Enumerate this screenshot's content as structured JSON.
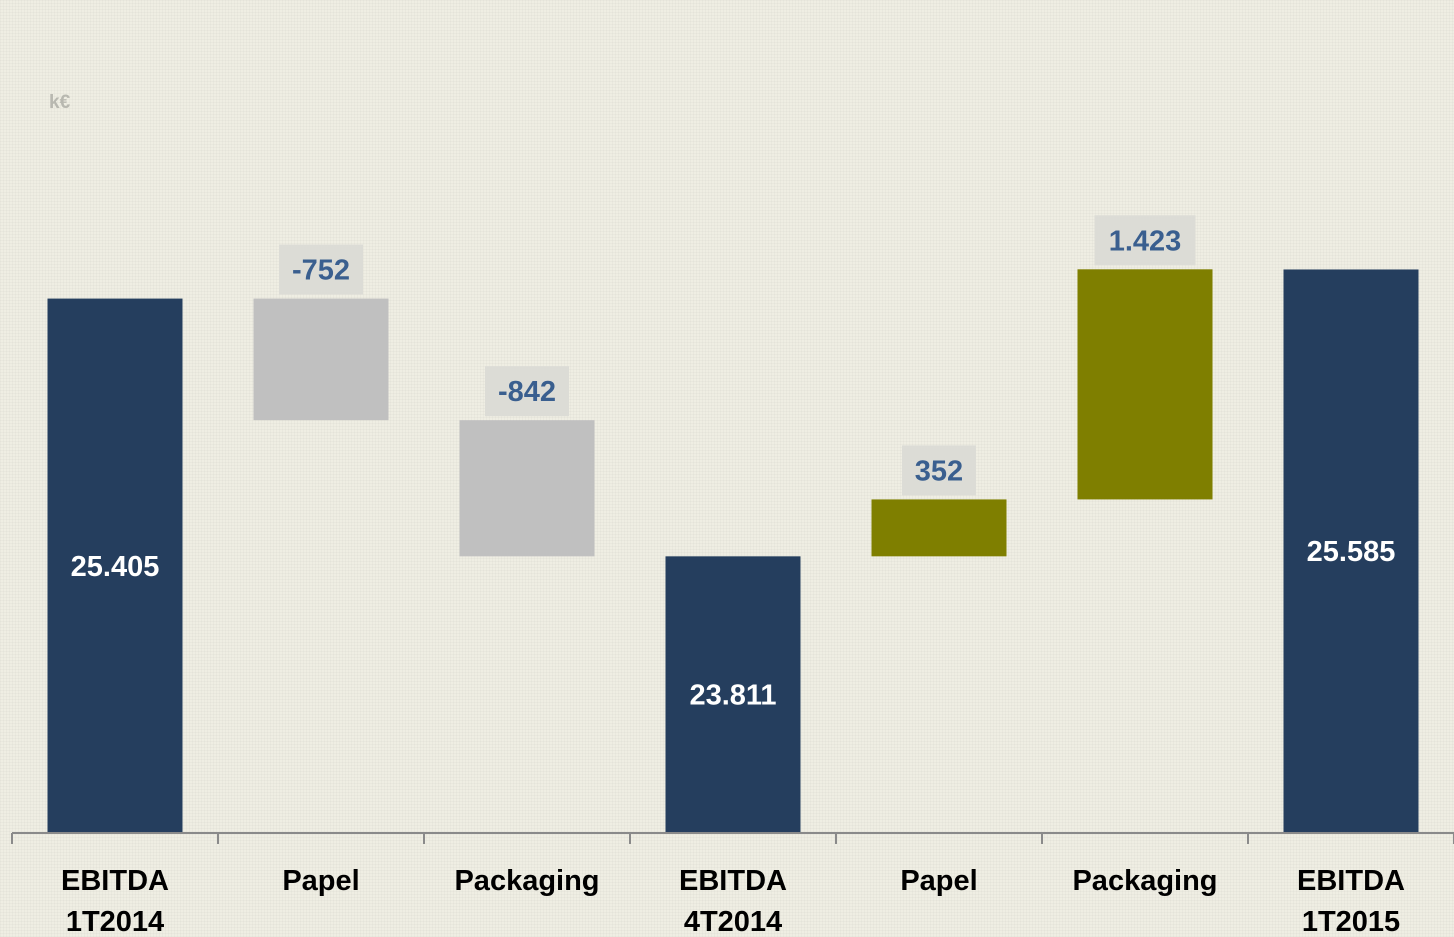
{
  "chart_data": {
    "type": "waterfall",
    "unit_label": "k€",
    "categories": [
      [
        "EBITDA",
        "1T2014"
      ],
      [
        "Papel"
      ],
      [
        "Packaging"
      ],
      [
        "EBITDA",
        "4T2014"
      ],
      [
        "Papel"
      ],
      [
        "Packaging"
      ],
      [
        "EBITDA",
        "1T2015"
      ]
    ],
    "steps": [
      {
        "kind": "total",
        "value": 25405,
        "label": "25.405"
      },
      {
        "kind": "delta",
        "value": -752,
        "label": "-752"
      },
      {
        "kind": "delta",
        "value": -842,
        "label": "-842"
      },
      {
        "kind": "total",
        "value": 23811,
        "label": "23.811"
      },
      {
        "kind": "delta",
        "value": 352,
        "label": "352"
      },
      {
        "kind": "delta",
        "value": 1423,
        "label": "1.423"
      },
      {
        "kind": "total",
        "value": 25585,
        "label": "25.585"
      }
    ],
    "ylim": [
      22100,
      26800
    ],
    "colors": {
      "total": "#253e5e",
      "negative": "#c0c0c0",
      "positive": "#7f7f00",
      "label_box": "#dcdcd6",
      "axis": "#8a8a8a"
    },
    "grid": false
  }
}
